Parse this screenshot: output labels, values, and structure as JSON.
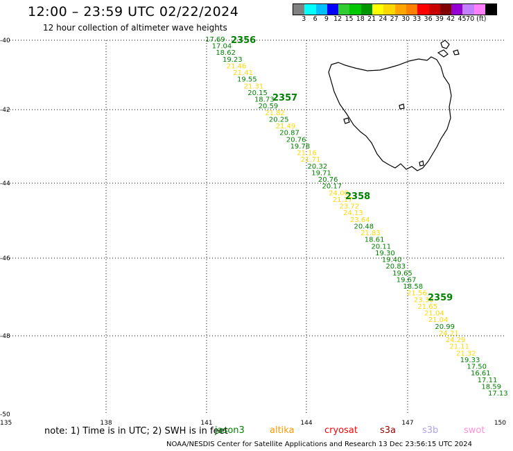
{
  "title": "12:00 – 23:59 UTC 02/22/2024",
  "subtitle": "12 hour collection of altimeter wave heights",
  "colorbar": {
    "colors": [
      "#808080",
      "#00ffff",
      "#00bfff",
      "#0000ff",
      "#32cd32",
      "#00c800",
      "#009600",
      "#ffff00",
      "#ffd700",
      "#ffa500",
      "#ff7f00",
      "#ff0000",
      "#c80000",
      "#800000",
      "#9400d3",
      "#c080ff",
      "#ff80ff",
      "#000000"
    ],
    "labels": [
      "3",
      "6",
      "9",
      "12",
      "15",
      "18",
      "21",
      "24",
      "27",
      "30",
      "33",
      "36",
      "39",
      "42",
      "45",
      "70 (ft)"
    ]
  },
  "map": {
    "lon_range": [
      135,
      150
    ],
    "lat_range": [
      -50,
      -40
    ],
    "lon_ticks": [
      "135",
      "138",
      "141",
      "144",
      "147",
      "150"
    ],
    "lat_ticks": [
      "-40",
      "-42",
      "-44",
      "-46",
      "-48",
      "-50"
    ],
    "grid": "dotted"
  },
  "time_labels": [
    "2356",
    "2357",
    "2358",
    "2359"
  ],
  "points": [
    {
      "v": "17.69",
      "c": "green"
    },
    {
      "v": "17.04",
      "c": "green"
    },
    {
      "v": "18.62",
      "c": "green"
    },
    {
      "v": "19.23",
      "c": "green"
    },
    {
      "v": "21.46",
      "c": "yellow"
    },
    {
      "v": "21.41",
      "c": "yellow"
    },
    {
      "v": "19.55",
      "c": "green"
    },
    {
      "v": "21.31",
      "c": "yellow"
    },
    {
      "v": "20.15",
      "c": "green"
    },
    {
      "v": "18.73",
      "c": "green"
    },
    {
      "v": "20.59",
      "c": "green"
    },
    {
      "v": "21.82",
      "c": "yellow"
    },
    {
      "v": "20.25",
      "c": "green"
    },
    {
      "v": "21.49",
      "c": "yellow"
    },
    {
      "v": "20.87",
      "c": "green"
    },
    {
      "v": "20.76",
      "c": "green"
    },
    {
      "v": "19.78",
      "c": "green"
    },
    {
      "v": "21.16",
      "c": "yellow"
    },
    {
      "v": "21.71",
      "c": "yellow"
    },
    {
      "v": "20.32",
      "c": "green"
    },
    {
      "v": "19.71",
      "c": "green"
    },
    {
      "v": "20.76",
      "c": "green"
    },
    {
      "v": "20.17",
      "c": "green"
    },
    {
      "v": "24.00",
      "c": "yellow"
    },
    {
      "v": "21.17",
      "c": "yellow"
    },
    {
      "v": "23.72",
      "c": "yellow"
    },
    {
      "v": "24.13",
      "c": "yellow"
    },
    {
      "v": "23.64",
      "c": "yellow"
    },
    {
      "v": "20.48",
      "c": "green"
    },
    {
      "v": "21.83",
      "c": "yellow"
    },
    {
      "v": "18.61",
      "c": "green"
    },
    {
      "v": "20.11",
      "c": "green"
    },
    {
      "v": "19.30",
      "c": "green"
    },
    {
      "v": "19.40",
      "c": "green"
    },
    {
      "v": "20.83",
      "c": "green"
    },
    {
      "v": "19.65",
      "c": "green"
    },
    {
      "v": "19.67",
      "c": "green"
    },
    {
      "v": "18.58",
      "c": "green"
    },
    {
      "v": "21.56",
      "c": "yellow"
    },
    {
      "v": "23.30",
      "c": "yellow"
    },
    {
      "v": "21.65",
      "c": "yellow"
    },
    {
      "v": "21.04",
      "c": "yellow"
    },
    {
      "v": "21.04",
      "c": "yellow"
    },
    {
      "v": "20.99",
      "c": "green"
    },
    {
      "v": "24.21",
      "c": "yellow"
    },
    {
      "v": "24.29",
      "c": "yellow"
    },
    {
      "v": "21.11",
      "c": "yellow"
    },
    {
      "v": "21.32",
      "c": "yellow"
    },
    {
      "v": "19.33",
      "c": "green"
    },
    {
      "v": "17.50",
      "c": "green"
    },
    {
      "v": "16.61",
      "c": "green"
    },
    {
      "v": "17.11",
      "c": "green"
    },
    {
      "v": "18.59",
      "c": "green"
    },
    {
      "v": "17.13",
      "c": "green"
    }
  ],
  "colors": {
    "green": "#008000",
    "yellow": "#ffd800"
  },
  "note": "note:  1) Time is in UTC; 2) SWH is in feet",
  "satellites": [
    {
      "name": "jason3",
      "color": "#008000"
    },
    {
      "name": "altika",
      "color": "#ff9900"
    },
    {
      "name": "cryosat",
      "color": "#ff0000"
    },
    {
      "name": "s3a",
      "color": "#990000"
    },
    {
      "name": "s3b",
      "color": "#b0a0f0"
    },
    {
      "name": "swot",
      "color": "#ff90d8"
    }
  ],
  "credit": "NOAA/NESDIS Center for Satellite Applications and Research     13 Dec 23:56:15 UTC 2024"
}
